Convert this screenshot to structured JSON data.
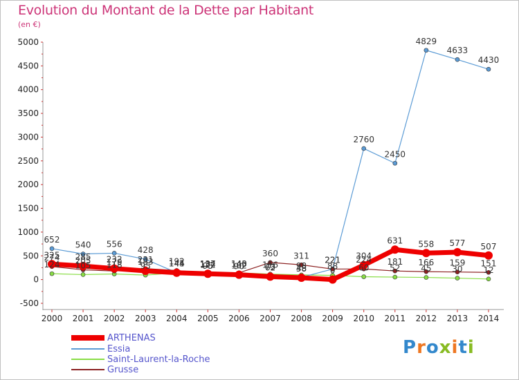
{
  "header": {
    "title": "Evolution du Montant de la Dette par Habitant",
    "unit": "(en €)"
  },
  "logo": {
    "text": "Proxiti"
  },
  "colors": {
    "title": "#cc3377",
    "ARTHENAS": "#ee0000",
    "Essia": "#5b9bd5",
    "Saint-Laurent-la-Roche": "#88dd44",
    "Grusse": "#8b2020"
  },
  "chart_data": {
    "type": "line",
    "title": "Evolution du Montant de la Dette par Habitant",
    "ylabel": "(en €)",
    "categories": [
      "2000",
      "2001",
      "2002",
      "2003",
      "2004",
      "2005",
      "2006",
      "2007",
      "2008",
      "2009",
      "2010",
      "2011",
      "2012",
      "2013",
      "2014"
    ],
    "ylim": [
      -500,
      5000
    ],
    "yticks": [
      -500,
      0,
      500,
      1000,
      1500,
      2000,
      2500,
      3000,
      3500,
      4000,
      4500,
      5000
    ],
    "grid": false,
    "legend_position": "bottom-left",
    "series": [
      {
        "name": "ARTHENAS",
        "values": [
          325,
          285,
          232,
          183,
          144,
          122,
          102,
          62,
          38,
          0,
          304,
          631,
          558,
          577,
          507
        ]
      },
      {
        "name": "Essia",
        "values": [
          652,
          540,
          556,
          428,
          145,
          95,
          90,
          73,
          48,
          221,
          2760,
          2450,
          4829,
          4633,
          4430
        ]
      },
      {
        "name": "Saint-Laurent-la-Roche",
        "values": [
          124,
          105,
          118,
          95,
          144,
          134,
          140,
          116,
          98,
          88,
          60,
          52,
          45,
          30,
          12
        ]
      },
      {
        "name": "Grusse",
        "values": [
          274,
          205,
          179,
          231,
          192,
          137,
          143,
          360,
          311,
          221,
          224,
          181,
          166,
          159,
          151
        ]
      }
    ]
  }
}
